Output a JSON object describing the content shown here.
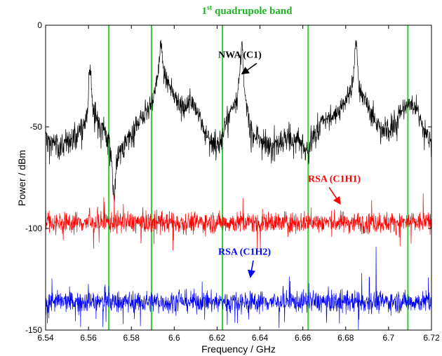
{
  "chart_data": {
    "type": "line",
    "title_prefix": "1",
    "title_sup": "st",
    "title_rest": " quadrupole band",
    "title_color": "#22b322",
    "xlabel": "Frequency / GHz",
    "ylabel": "Power / dBm",
    "xlim": [
      6.54,
      6.72
    ],
    "ylim": [
      -150,
      0
    ],
    "xticks": [
      "6.54",
      "6.56",
      "6.58",
      "6.6",
      "6.62",
      "6.64",
      "6.66",
      "6.68",
      "6.7",
      "6.72"
    ],
    "yticks": [
      "0",
      "-50",
      "-100",
      "-150"
    ],
    "grid": false,
    "vertical_lines": {
      "color": "#33cc33",
      "x": [
        6.5695,
        6.5894,
        6.6225,
        6.6625,
        6.709
      ]
    },
    "series": [
      {
        "name": "NWA (C1)",
        "color": "#000000",
        "baseline_points": [
          [
            6.54,
            -53
          ],
          [
            6.545,
            -55
          ],
          [
            6.55,
            -54
          ],
          [
            6.555,
            -50
          ],
          [
            6.5585,
            -48
          ],
          [
            6.562,
            -46
          ],
          [
            6.566,
            -45
          ],
          [
            6.57,
            -52
          ],
          [
            6.573,
            -56
          ],
          [
            6.577,
            -55
          ],
          [
            6.581,
            -49
          ],
          [
            6.585,
            -43
          ],
          [
            6.589,
            -38
          ],
          [
            6.592,
            -28
          ],
          [
            6.596,
            -27
          ],
          [
            6.6,
            -32
          ],
          [
            6.604,
            -40
          ],
          [
            6.608,
            -35
          ],
          [
            6.612,
            -43
          ],
          [
            6.616,
            -52
          ],
          [
            6.62,
            -56
          ],
          [
            6.623,
            -49
          ],
          [
            6.627,
            -40
          ],
          [
            6.631,
            -35
          ],
          [
            6.635,
            -45
          ],
          [
            6.638,
            -52
          ],
          [
            6.642,
            -55
          ],
          [
            6.646,
            -54
          ],
          [
            6.65,
            -53
          ],
          [
            6.654,
            -51
          ],
          [
            6.658,
            -53
          ],
          [
            6.662,
            -60
          ],
          [
            6.665,
            -50
          ],
          [
            6.669,
            -45
          ],
          [
            6.673,
            -43
          ],
          [
            6.677,
            -40
          ],
          [
            6.68,
            -36
          ],
          [
            6.684,
            -33
          ],
          [
            6.688,
            -35
          ],
          [
            6.692,
            -42
          ],
          [
            6.696,
            -48
          ],
          [
            6.7,
            -47
          ],
          [
            6.704,
            -44
          ],
          [
            6.708,
            -38
          ],
          [
            6.711,
            -36
          ],
          [
            6.714,
            -42
          ],
          [
            6.717,
            -50
          ],
          [
            6.72,
            -52
          ]
        ],
        "peaks": [
          [
            6.5607,
            -12
          ],
          [
            6.5938,
            -7
          ],
          [
            6.6315,
            -8
          ],
          [
            6.6848,
            -6
          ],
          [
            6.5718,
            -81
          ]
        ]
      },
      {
        "name": "RSA (C1H1)",
        "color": "#ff0000",
        "mean_level": -97,
        "spur_points": [
          [
            6.572,
            -83
          ],
          [
            6.5605,
            -90
          ]
        ]
      },
      {
        "name": "RSA (C1H2)",
        "color": "#0000ff",
        "mean_level": -136,
        "spur_points": [
          [
            6.6942,
            -109
          ],
          [
            6.6875,
            -122
          ],
          [
            6.691,
            -124
          ]
        ]
      }
    ],
    "annotations": [
      {
        "text": "NWA (C1)",
        "color": "#000000",
        "x": 6.6205,
        "y": -16,
        "arrow_to": [
          6.6315,
          -24
        ]
      },
      {
        "text": "RSA (C1H1)",
        "color": "#ff0000",
        "x": 6.6624,
        "y": -77,
        "arrow_to": [
          6.6775,
          -88
        ]
      },
      {
        "text": "RSA (C1H2)",
        "color": "#0000ff",
        "x": 6.6205,
        "y": -113,
        "arrow_to": [
          6.6355,
          -124
        ]
      }
    ]
  }
}
